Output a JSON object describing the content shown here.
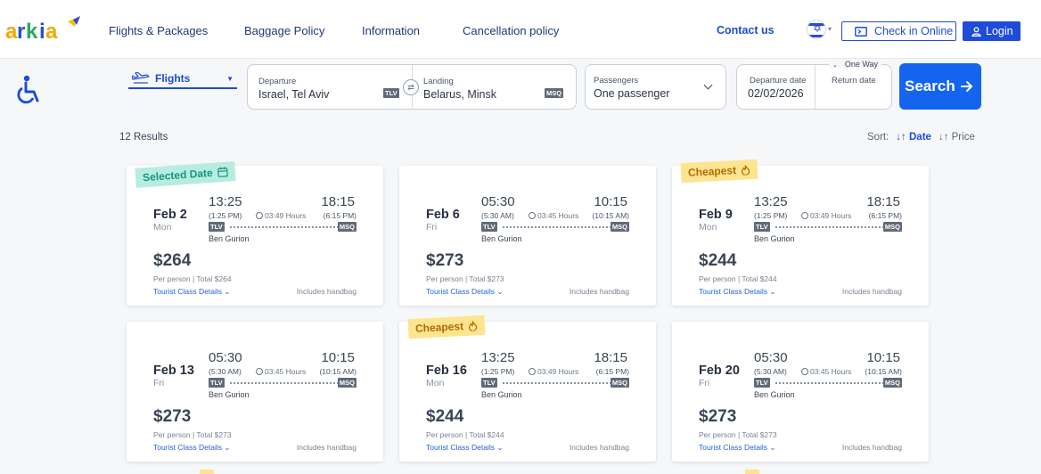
{
  "header": {
    "nav": [
      "Flights & Packages",
      "Baggage Policy",
      "Information",
      "Cancellation policy"
    ],
    "contact": "Contact us",
    "check_in": "Check in Online",
    "login": "Login"
  },
  "search": {
    "trip_type": "Flights",
    "departure_label": "Departure",
    "departure_value": "Israel, Tel Aviv",
    "departure_code": "TLV",
    "landing_label": "Landing",
    "landing_value": "Belarus, Minsk",
    "landing_code": "MSQ",
    "passengers_label": "Passengers",
    "passengers_value": "One passenger",
    "trip_mode": "One Way",
    "departure_date_label": "Departure date",
    "departure_date_value": "02/02/2026",
    "return_date_label": "Return date",
    "search_button": "Search"
  },
  "results": {
    "count": "12 Results",
    "sort_label": "Sort:",
    "sort_date": "Date",
    "sort_price": "Price"
  },
  "cards": [
    {
      "tag": "Selected Date",
      "date": "Feb 2",
      "dow": "Mon",
      "dep": "13:25",
      "dep12": "(1:25 PM)",
      "arr": "18:15",
      "arr12": "(6:15 PM)",
      "duration": "03:49 Hours",
      "price": "$264",
      "total": "Per person | Total $264"
    },
    {
      "tag": "",
      "date": "Feb 6",
      "dow": "Fri",
      "dep": "05:30",
      "dep12": "(5:30 AM)",
      "arr": "10:15",
      "arr12": "(10:15 AM)",
      "duration": "03:45 Hours",
      "price": "$273",
      "total": "Per person | Total $273"
    },
    {
      "tag": "Cheapest",
      "date": "Feb 9",
      "dow": "Mon",
      "dep": "13:25",
      "dep12": "(1:25 PM)",
      "arr": "18:15",
      "arr12": "(6:15 PM)",
      "duration": "03:49 Hours",
      "price": "$244",
      "total": "Per person | Total $244"
    },
    {
      "tag": "",
      "date": "Feb 13",
      "dow": "Fri",
      "dep": "05:30",
      "dep12": "(5:30 AM)",
      "arr": "10:15",
      "arr12": "(10:15 AM)",
      "duration": "03:45 Hours",
      "price": "$273",
      "total": "Per person | Total $273"
    },
    {
      "tag": "Cheapest",
      "date": "Feb 16",
      "dow": "Mon",
      "dep": "13:25",
      "dep12": "(1:25 PM)",
      "arr": "18:15",
      "arr12": "(6:15 PM)",
      "duration": "03:49 Hours",
      "price": "$244",
      "total": "Per person | Total $244"
    },
    {
      "tag": "",
      "date": "Feb 20",
      "dow": "Fri",
      "dep": "05:30",
      "dep12": "(5:30 AM)",
      "arr": "10:15",
      "arr12": "(10:15 AM)",
      "duration": "03:45 Hours",
      "price": "$273",
      "total": "Per person | Total $273"
    }
  ],
  "card_common": {
    "from": "TLV",
    "to": "MSQ",
    "airport": "Ben Gurion",
    "class_details": "Tourist Class Details",
    "handbag": "Includes handbag"
  },
  "colors": {
    "brand_blue": "#1e4bd8",
    "search_blue": "#1464f0",
    "selected_tag": "#b7ece1",
    "cheapest_tag": "#fde58f"
  }
}
